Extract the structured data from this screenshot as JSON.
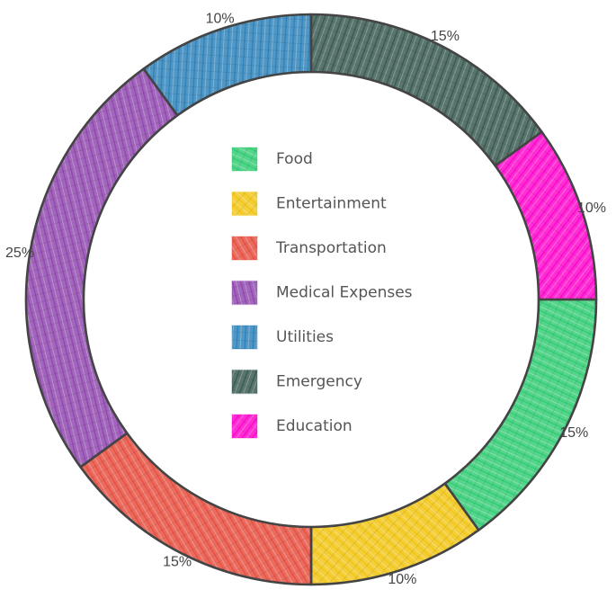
{
  "chart_data": {
    "type": "pie",
    "variant": "donut",
    "style": "hand-drawn",
    "legend_position": "center",
    "slices": [
      {
        "label": "Food",
        "value": 15,
        "percent_label": "15%",
        "color": "#2ecc71"
      },
      {
        "label": "Entertainment",
        "value": 10,
        "percent_label": "10%",
        "color": "#f1c40f"
      },
      {
        "label": "Transportation",
        "value": 15,
        "percent_label": "15%",
        "color": "#e74c3c"
      },
      {
        "label": "Medical Expenses",
        "value": 25,
        "percent_label": "25%",
        "color": "#8e44ad"
      },
      {
        "label": "Utilities",
        "value": 10,
        "percent_label": "10%",
        "color": "#2980b9"
      },
      {
        "label": "Emergency",
        "value": 15,
        "percent_label": "15%",
        "color": "#34574e"
      },
      {
        "label": "Education",
        "value": 10,
        "percent_label": "10%",
        "color": "#ff00cc"
      }
    ]
  }
}
